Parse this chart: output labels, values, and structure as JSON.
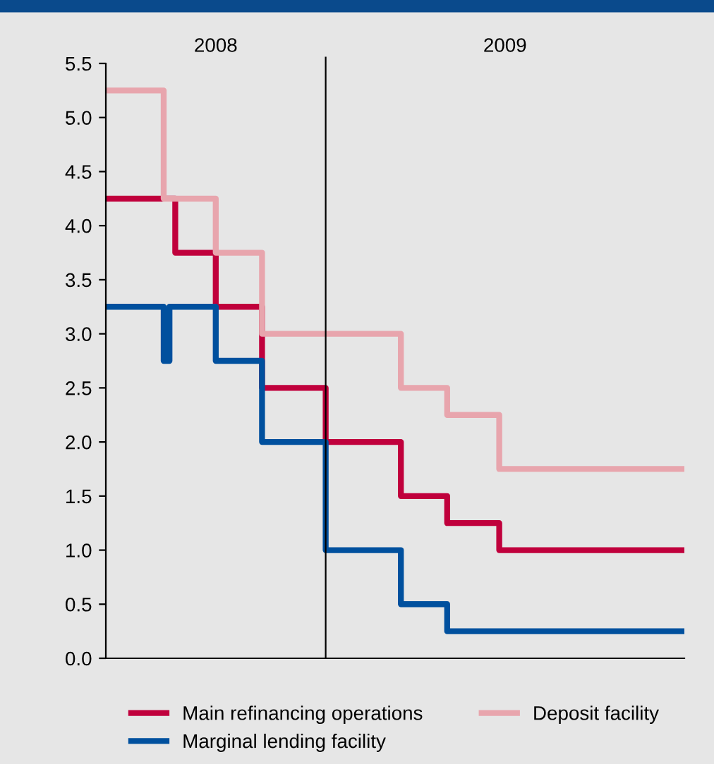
{
  "chart_data": {
    "type": "step",
    "categories": [
      null,
      null,
      null,
      null,
      null,
      null,
      null,
      null,
      null,
      null,
      null,
      null,
      null,
      null,
      null,
      null,
      null,
      null,
      null,
      null,
      null,
      null,
      null,
      null,
      null,
      null,
      null,
      null,
      null,
      null,
      null,
      null,
      null,
      null,
      null,
      null,
      null,
      null,
      null,
      null,
      null,
      null,
      null,
      null,
      null,
      null,
      null,
      null,
      null,
      null,
      null,
      null,
      null,
      null,
      null,
      null,
      null,
      null,
      null,
      null,
      null,
      null,
      null,
      null,
      null,
      null,
      null,
      null,
      null,
      null,
      null,
      null,
      null,
      null,
      null,
      null,
      null,
      null,
      null,
      null,
      null,
      null,
      null,
      null,
      null,
      null,
      null,
      null,
      null,
      null,
      null,
      null,
      null,
      null,
      null,
      null,
      null,
      null,
      null,
      null,
      null
    ],
    "series": [
      {
        "name": "Main refinancing operations",
        "color": "#c0003c",
        "values": [
          4.25,
          4.25,
          4.25,
          4.25,
          4.25,
          4.25,
          4.25,
          4.25,
          4.25,
          4.25,
          4.25,
          4.25,
          3.75,
          3.75,
          3.75,
          3.75,
          3.75,
          3.75,
          3.75,
          3.25,
          3.25,
          3.25,
          3.25,
          3.25,
          3.25,
          3.25,
          3.25,
          2.5,
          2.5,
          2.5,
          2.5,
          2.5,
          2.5,
          2.5,
          2.5,
          2.5,
          2.5,
          2.5,
          2.0,
          2.0,
          2.0,
          2.0,
          2.0,
          2.0,
          2.0,
          2.0,
          2.0,
          2.0,
          2.0,
          2.0,
          2.0,
          1.5,
          1.5,
          1.5,
          1.5,
          1.5,
          1.5,
          1.5,
          1.5,
          1.25,
          1.25,
          1.25,
          1.25,
          1.25,
          1.25,
          1.25,
          1.25,
          1.25,
          1.0,
          1.0,
          1.0,
          1.0,
          1.0,
          1.0,
          1.0,
          1.0,
          1.0,
          1.0,
          1.0,
          1.0,
          1.0,
          1.0,
          1.0,
          1.0,
          1.0,
          1.0,
          1.0,
          1.0,
          1.0,
          1.0,
          1.0,
          1.0,
          1.0,
          1.0,
          1.0,
          1.0,
          1.0,
          1.0,
          1.0,
          1.0,
          1.0
        ]
      },
      {
        "name": "Marginal lending facility",
        "color": "#00509e",
        "values": [
          3.25,
          3.25,
          3.25,
          3.25,
          3.25,
          3.25,
          3.25,
          3.25,
          3.25,
          3.25,
          2.75,
          3.25,
          3.25,
          3.25,
          3.25,
          3.25,
          3.25,
          3.25,
          3.25,
          2.75,
          2.75,
          2.75,
          2.75,
          2.75,
          2.75,
          2.75,
          2.75,
          2.0,
          2.0,
          2.0,
          2.0,
          2.0,
          2.0,
          2.0,
          2.0,
          2.0,
          2.0,
          2.0,
          1.0,
          1.0,
          1.0,
          1.0,
          1.0,
          1.0,
          1.0,
          1.0,
          1.0,
          1.0,
          1.0,
          1.0,
          1.0,
          0.5,
          0.5,
          0.5,
          0.5,
          0.5,
          0.5,
          0.5,
          0.5,
          0.25,
          0.25,
          0.25,
          0.25,
          0.25,
          0.25,
          0.25,
          0.25,
          0.25,
          0.25,
          0.25,
          0.25,
          0.25,
          0.25,
          0.25,
          0.25,
          0.25,
          0.25,
          0.25,
          0.25,
          0.25,
          0.25,
          0.25,
          0.25,
          0.25,
          0.25,
          0.25,
          0.25,
          0.25,
          0.25,
          0.25,
          0.25,
          0.25,
          0.25,
          0.25,
          0.25,
          0.25,
          0.25,
          0.25,
          0.25,
          0.25,
          0.25
        ]
      },
      {
        "name": "Deposit facility",
        "color": "#e8a5ad",
        "values": [
          5.25,
          5.25,
          5.25,
          5.25,
          5.25,
          5.25,
          5.25,
          5.25,
          5.25,
          5.25,
          4.25,
          4.25,
          4.25,
          4.25,
          4.25,
          4.25,
          4.25,
          4.25,
          4.25,
          3.75,
          3.75,
          3.75,
          3.75,
          3.75,
          3.75,
          3.75,
          3.75,
          3.0,
          3.0,
          3.0,
          3.0,
          3.0,
          3.0,
          3.0,
          3.0,
          3.0,
          3.0,
          3.0,
          3.0,
          3.0,
          3.0,
          3.0,
          3.0,
          3.0,
          3.0,
          3.0,
          3.0,
          3.0,
          3.0,
          3.0,
          3.0,
          2.5,
          2.5,
          2.5,
          2.5,
          2.5,
          2.5,
          2.5,
          2.5,
          2.25,
          2.25,
          2.25,
          2.25,
          2.25,
          2.25,
          2.25,
          2.25,
          2.25,
          1.75,
          1.75,
          1.75,
          1.75,
          1.75,
          1.75,
          1.75,
          1.75,
          1.75,
          1.75,
          1.75,
          1.75,
          1.75,
          1.75,
          1.75,
          1.75,
          1.75,
          1.75,
          1.75,
          1.75,
          1.75,
          1.75,
          1.75,
          1.75,
          1.75,
          1.75,
          1.75,
          1.75,
          1.75,
          1.75,
          1.75,
          1.75,
          1.75
        ]
      }
    ],
    "annotations": [
      "2008",
      "2009"
    ],
    "ylim": [
      0,
      5.5
    ],
    "yticks": [
      {
        "value": 0,
        "label": "0.0"
      },
      {
        "value": 0.5,
        "label": "0.5"
      },
      {
        "value": 1,
        "label": "1.0"
      },
      {
        "value": 1.5,
        "label": "1.5"
      },
      {
        "value": 2,
        "label": "2.0"
      },
      {
        "value": 2.5,
        "label": "2.5"
      },
      {
        "value": 3,
        "label": "3.0"
      },
      {
        "value": 3.5,
        "label": "3.5"
      },
      {
        "value": 4,
        "label": "4.0"
      },
      {
        "value": 4.5,
        "label": "4.5"
      },
      {
        "value": 5,
        "label": "5.0"
      },
      {
        "value": 5.5,
        "label": "5.5"
      }
    ],
    "grid": false,
    "legend": "bottom",
    "line_style": "solid"
  }
}
